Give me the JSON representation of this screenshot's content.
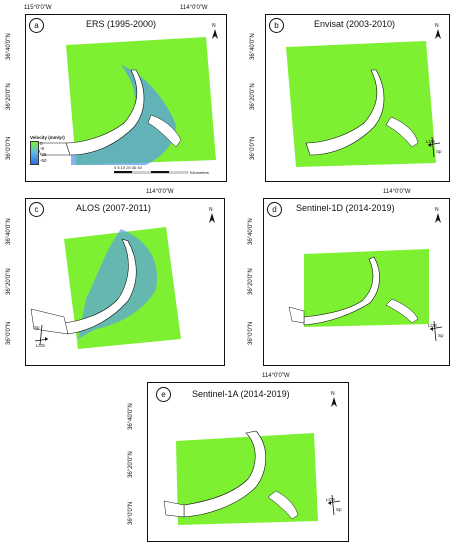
{
  "top_coords": {
    "left": "115°0'0\"W",
    "right": "114°0'0\"W"
  },
  "mid_coords": {
    "left": "114°0'0\"W",
    "right": "114°0'0\"W"
  },
  "bottom_coords": {
    "center": "114°0'0\"W"
  },
  "lat": {
    "n40": "36°40'0\"N",
    "n20": "36°20'0\"N",
    "n0": "36°0'0\"N"
  },
  "north_label": "N",
  "los": {
    "los": "LOS",
    "sp": "Sp"
  },
  "panels": [
    {
      "letter": "a",
      "title": "ERS (1995-2000)"
    },
    {
      "letter": "b",
      "title": "Envisat (2003-2010)"
    },
    {
      "letter": "c",
      "title": "ALOS (2007-2011)"
    },
    {
      "letter": "d",
      "title": "Sentinel-1D (2014-2019)"
    },
    {
      "letter": "e",
      "title": "Sentinel-1A (2014-2019)"
    }
  ],
  "legend": {
    "title": "Velocity (mm/yr)",
    "v0": "0",
    "v1": "-8",
    "v2": "-25",
    "v3": "-50"
  },
  "scale": {
    "ticks": "0   5   10       20          30          40",
    "unit": "Kilometers"
  },
  "colors": {
    "stable": "#7ef032",
    "subsiding": "#3f7fe6",
    "lake": "#ffffff"
  }
}
